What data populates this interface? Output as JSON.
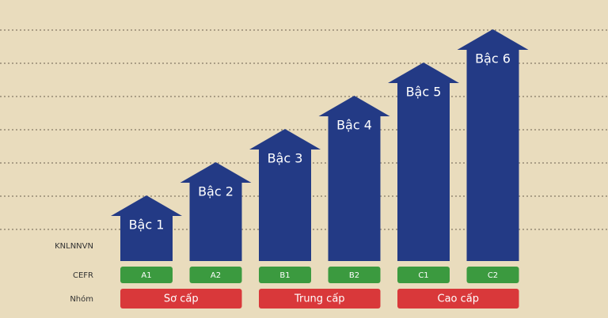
{
  "row_labels": [
    "KNLNNVN",
    "CEFR",
    "Nhóm"
  ],
  "levels": [
    {
      "label": "Bậc 1",
      "cefr": "A1"
    },
    {
      "label": "Bậc 2",
      "cefr": "A2"
    },
    {
      "label": "Bậc 3",
      "cefr": "B1"
    },
    {
      "label": "Bậc 4",
      "cefr": "B2"
    },
    {
      "label": "Bậc 5",
      "cefr": "C1"
    },
    {
      "label": "Bậc 6",
      "cefr": "C2"
    }
  ],
  "groups": [
    "Sơ cấp",
    "Trung cấp",
    "Cao cấp"
  ]
}
